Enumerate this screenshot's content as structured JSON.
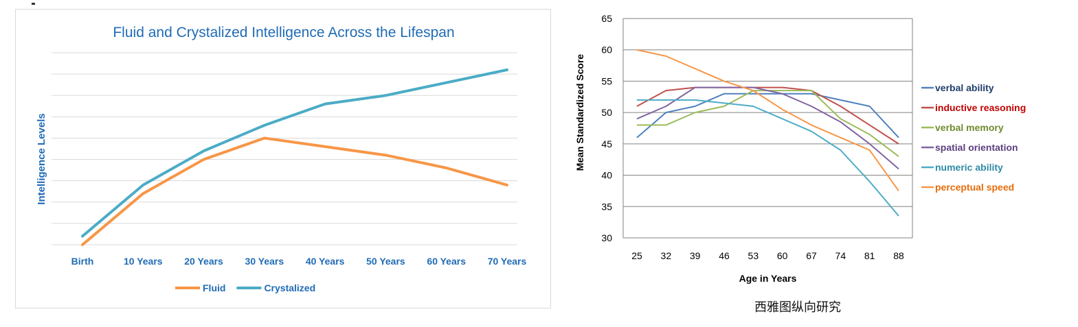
{
  "left_chart": {
    "chart_data": {
      "type": "line",
      "title": "Fluid and Crystalized Intelligence Across the Lifespan",
      "xlabel": "",
      "ylabel": "Intelligence Levels",
      "categories": [
        "Birth",
        "10 Years",
        "20 Years",
        "30 Years",
        "40 Years",
        "50 Years",
        "60 Years",
        "70 Years"
      ],
      "series": [
        {
          "name": "Fluid",
          "color": "#f79646",
          "values": [
            0,
            2.4,
            4.0,
            5.0,
            4.6,
            4.2,
            3.6,
            2.8
          ]
        },
        {
          "name": "Crystalized",
          "color": "#4bacc6",
          "values": [
            0.4,
            2.8,
            4.4,
            5.6,
            6.6,
            7.0,
            7.6,
            8.2
          ]
        }
      ],
      "ylim": [
        0,
        9
      ],
      "grid": true,
      "legend": "bottom",
      "y_tick_labels": false
    }
  },
  "right_chart": {
    "chart_data": {
      "type": "line",
      "title": "",
      "xlabel": "Age in Years",
      "ylabel": "Mean Standardized Score",
      "x": [
        25,
        32,
        39,
        46,
        53,
        60,
        67,
        74,
        81,
        88
      ],
      "ylim": [
        30,
        65
      ],
      "yticks": [
        30,
        35,
        40,
        45,
        50,
        55,
        60,
        65
      ],
      "grid": true,
      "legend": "right",
      "series": [
        {
          "name": "verbal ability",
          "color": "#4f81bd",
          "label_color": "#1f3d6b",
          "values": [
            46,
            50,
            51,
            53,
            53,
            53,
            53,
            52,
            51,
            46
          ]
        },
        {
          "name": "inductive reasoning",
          "color": "#c0504d",
          "label_color": "#c00000",
          "values": [
            51,
            53.5,
            54,
            54,
            54,
            54,
            53.5,
            51,
            48,
            45
          ]
        },
        {
          "name": "verbal memory",
          "color": "#9bbb59",
          "label_color": "#6e8b2e",
          "values": [
            48,
            48,
            50,
            51,
            53.5,
            53.5,
            53.5,
            49,
            46.5,
            43
          ]
        },
        {
          "name": "spatial orientation",
          "color": "#8064a2",
          "label_color": "#5b3f80",
          "values": [
            49,
            51,
            54,
            54,
            54,
            53,
            51,
            48.5,
            45,
            41
          ]
        },
        {
          "name": "numeric ability",
          "color": "#4bacc6",
          "label_color": "#2e8aa6",
          "values": [
            52,
            52,
            52,
            51.5,
            51,
            49,
            47,
            44,
            39,
            33.5
          ]
        },
        {
          "name": "perceptual speed",
          "color": "#f79646",
          "label_color": "#e46c0a",
          "values": [
            60,
            59,
            57,
            55,
            53.5,
            50.5,
            48,
            46,
            44,
            37.5
          ]
        }
      ]
    },
    "caption": "西雅图纵向研究"
  }
}
